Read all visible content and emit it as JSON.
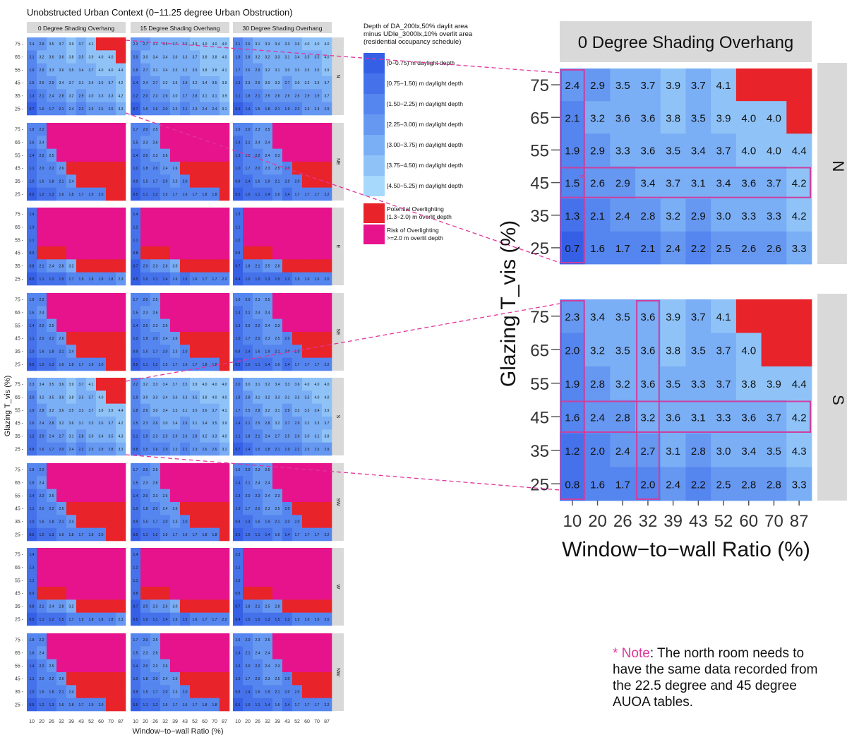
{
  "chart_data": {
    "type": "heatmap",
    "title": "Unobstructed Urban Context (0−11.25 degree Urban Obstruction)",
    "xlabel": "Window−to−wall Ratio (%)",
    "ylabel": "Glazing T_vis (%)",
    "x_categories": [
      "10",
      "20",
      "26",
      "32",
      "39",
      "43",
      "52",
      "60",
      "70",
      "87"
    ],
    "y_categories": [
      "25",
      "35",
      "45",
      "55",
      "65",
      "75"
    ],
    "column_facets": [
      "0 Degree Shading Overhang",
      "15 Degree Shading Overhang",
      "30 Degree Shading Overhang"
    ],
    "row_facets": [
      "N",
      "NE",
      "E",
      "SE",
      "S",
      "SW",
      "W",
      "NW"
    ],
    "value_unit": "m daylight depth",
    "legend": {
      "title": "Depth of DA_200lx,50% daylit area minus UDIe_3000lx,10% overlit area (residential occupancy schedule)",
      "placement": "top-center",
      "items": [
        {
          "label": "[0−0.75) m daylight depth",
          "color": "#3560e6"
        },
        {
          "label": "[0.75−1.50) m daylight depth",
          "color": "#4572ea"
        },
        {
          "label": "[1.50−2.25) m daylight depth",
          "color": "#5585ee"
        },
        {
          "label": "[2.25−3.00) m daylight depth",
          "color": "#6698f1"
        },
        {
          "label": "[3.00−3.75) m daylight depth",
          "color": "#7aaef5"
        },
        {
          "label": "[3.75−4.50) m daylight depth",
          "color": "#8fc3f8"
        },
        {
          "label": "[4.50−5.25) m daylight depth",
          "color": "#a6d9fb"
        },
        {
          "label": "Potential Overlighting [1.3−2.0) m overlit depth",
          "color": "#e8232a"
        },
        {
          "label": "Risk of Overlighting >=2.0 m overlit depth",
          "color": "#e6138c"
        }
      ]
    },
    "zoom_panels": [
      {
        "facet": "N",
        "column": "0 Degree Shading Overhang",
        "rows": [
          {
            "y": "75",
            "values": [
              2.4,
              2.9,
              3.5,
              3.7,
              3.9,
              3.7,
              4.1,
              null,
              null,
              null
            ],
            "overlight_from": 7
          },
          {
            "y": "65",
            "values": [
              2.1,
              3.2,
              3.6,
              3.6,
              3.8,
              3.5,
              3.9,
              4.0,
              4.0,
              null
            ],
            "overlight_from": 9
          },
          {
            "y": "55",
            "values": [
              1.9,
              2.9,
              3.3,
              3.6,
              3.5,
              3.4,
              3.7,
              4.0,
              4.0,
              4.4
            ],
            "overlight_from": null
          },
          {
            "y": "45",
            "values": [
              1.5,
              2.6,
              2.9,
              3.4,
              3.7,
              3.1,
              3.4,
              3.6,
              3.7,
              4.2
            ],
            "overlight_from": null
          },
          {
            "y": "35",
            "values": [
              1.3,
              2.1,
              2.4,
              2.8,
              3.2,
              2.9,
              3.0,
              3.3,
              3.3,
              4.2
            ],
            "overlight_from": null
          },
          {
            "y": "25",
            "values": [
              0.7,
              1.6,
              1.7,
              2.1,
              2.4,
              2.2,
              2.5,
              2.6,
              2.6,
              3.3
            ],
            "overlight_from": null
          }
        ]
      },
      {
        "facet": "S",
        "column": "0 Degree Shading Overhang",
        "rows": [
          {
            "y": "75",
            "values": [
              2.3,
              3.4,
              3.5,
              3.6,
              3.9,
              3.7,
              4.1,
              null,
              null,
              null
            ],
            "overlight_from": 7
          },
          {
            "y": "65",
            "values": [
              2.0,
              3.2,
              3.5,
              3.6,
              3.8,
              3.5,
              3.7,
              4.0,
              null,
              null
            ],
            "overlight_from": 8
          },
          {
            "y": "55",
            "values": [
              1.9,
              2.8,
              3.2,
              3.6,
              3.5,
              3.3,
              3.7,
              3.8,
              3.9,
              4.4
            ],
            "overlight_from": null
          },
          {
            "y": "45",
            "values": [
              1.6,
              2.4,
              2.8,
              3.2,
              3.6,
              3.1,
              3.3,
              3.6,
              3.7,
              4.2
            ],
            "overlight_from": null
          },
          {
            "y": "35",
            "values": [
              1.2,
              2.0,
              2.4,
              2.7,
              3.1,
              2.8,
              3.0,
              3.4,
              3.5,
              4.3
            ],
            "overlight_from": null
          },
          {
            "y": "25",
            "values": [
              0.8,
              1.6,
              1.7,
              2.0,
              2.4,
              2.2,
              2.5,
              2.8,
              2.8,
              3.3
            ],
            "overlight_from": null
          }
        ]
      }
    ]
  },
  "note": {
    "star": "* Note",
    "text": ": The north room needs to have the same data recorded from the 22.5 degree and 45 degree AUOA tables."
  }
}
